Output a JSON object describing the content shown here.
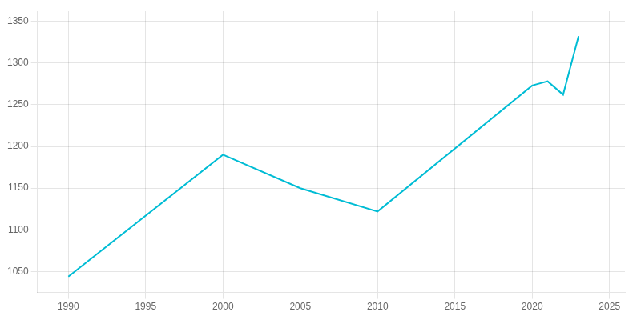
{
  "chart_data": {
    "type": "line",
    "x": [
      1990,
      2000,
      2005,
      2010,
      2020,
      2021,
      2022,
      2023
    ],
    "values": [
      1044,
      1190,
      1150,
      1122,
      1273,
      1278,
      1262,
      1332
    ],
    "color": "#00BCD4",
    "xlim": [
      1988,
      2026
    ],
    "ylim": [
      1025,
      1362
    ],
    "xticks": [
      1990,
      1995,
      2000,
      2005,
      2010,
      2015,
      2020,
      2025
    ],
    "yticks": [
      1050,
      1100,
      1150,
      1200,
      1250,
      1300,
      1350
    ],
    "grid": true
  }
}
